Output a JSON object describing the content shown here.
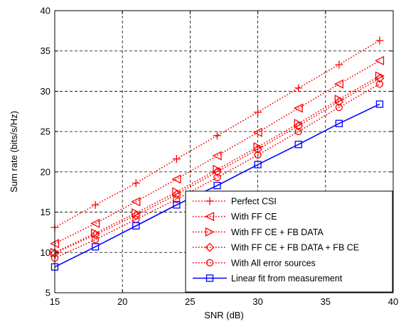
{
  "chart_data": {
    "type": "line",
    "xlabel": "SNR (dB)",
    "ylabel": "Sum rate (bits/s/Hz)",
    "xlim": [
      15,
      40
    ],
    "ylim": [
      5,
      40
    ],
    "xticks": [
      15,
      20,
      25,
      30,
      35,
      40
    ],
    "yticks": [
      5,
      10,
      15,
      20,
      25,
      30,
      35,
      40
    ],
    "grid": true,
    "grid_style": "dashed",
    "legend_position": "lower-right",
    "x": [
      15,
      18,
      21,
      24,
      27,
      30,
      33,
      36,
      39
    ],
    "series": [
      {
        "name": "Perfect CSI",
        "color": "#ff0000",
        "line": "dotted",
        "marker": "plus",
        "values": [
          13.1,
          15.9,
          18.6,
          21.6,
          24.5,
          27.4,
          30.4,
          33.3,
          36.3
        ]
      },
      {
        "name": "With FF CE",
        "color": "#ff0000",
        "line": "dotted",
        "marker": "triangle-left",
        "values": [
          11.1,
          13.6,
          16.3,
          19.1,
          22.0,
          24.9,
          27.9,
          30.9,
          33.8
        ]
      },
      {
        "name": "With FF CE + FB DATA",
        "color": "#ff0000",
        "line": "dotted",
        "marker": "triangle-right",
        "values": [
          10.0,
          12.4,
          14.9,
          17.5,
          20.3,
          23.1,
          26.0,
          29.0,
          31.9
        ]
      },
      {
        "name": "With FF CE + FB DATA + FB CE",
        "color": "#ff0000",
        "line": "dotted",
        "marker": "diamond",
        "values": [
          9.9,
          12.2,
          14.6,
          17.2,
          20.0,
          22.8,
          25.7,
          28.7,
          31.6
        ]
      },
      {
        "name": "With All error sources",
        "color": "#ff0000",
        "line": "dotted",
        "marker": "circle",
        "values": [
          9.3,
          11.6,
          14.1,
          16.6,
          19.3,
          22.1,
          25.0,
          28.0,
          30.9
        ]
      },
      {
        "name": "Linear fit from measurement",
        "color": "#0000ff",
        "line": "solid",
        "marker": "square",
        "values": [
          8.2,
          10.7,
          13.3,
          15.9,
          18.3,
          20.9,
          23.4,
          26.0,
          28.4
        ]
      }
    ]
  }
}
